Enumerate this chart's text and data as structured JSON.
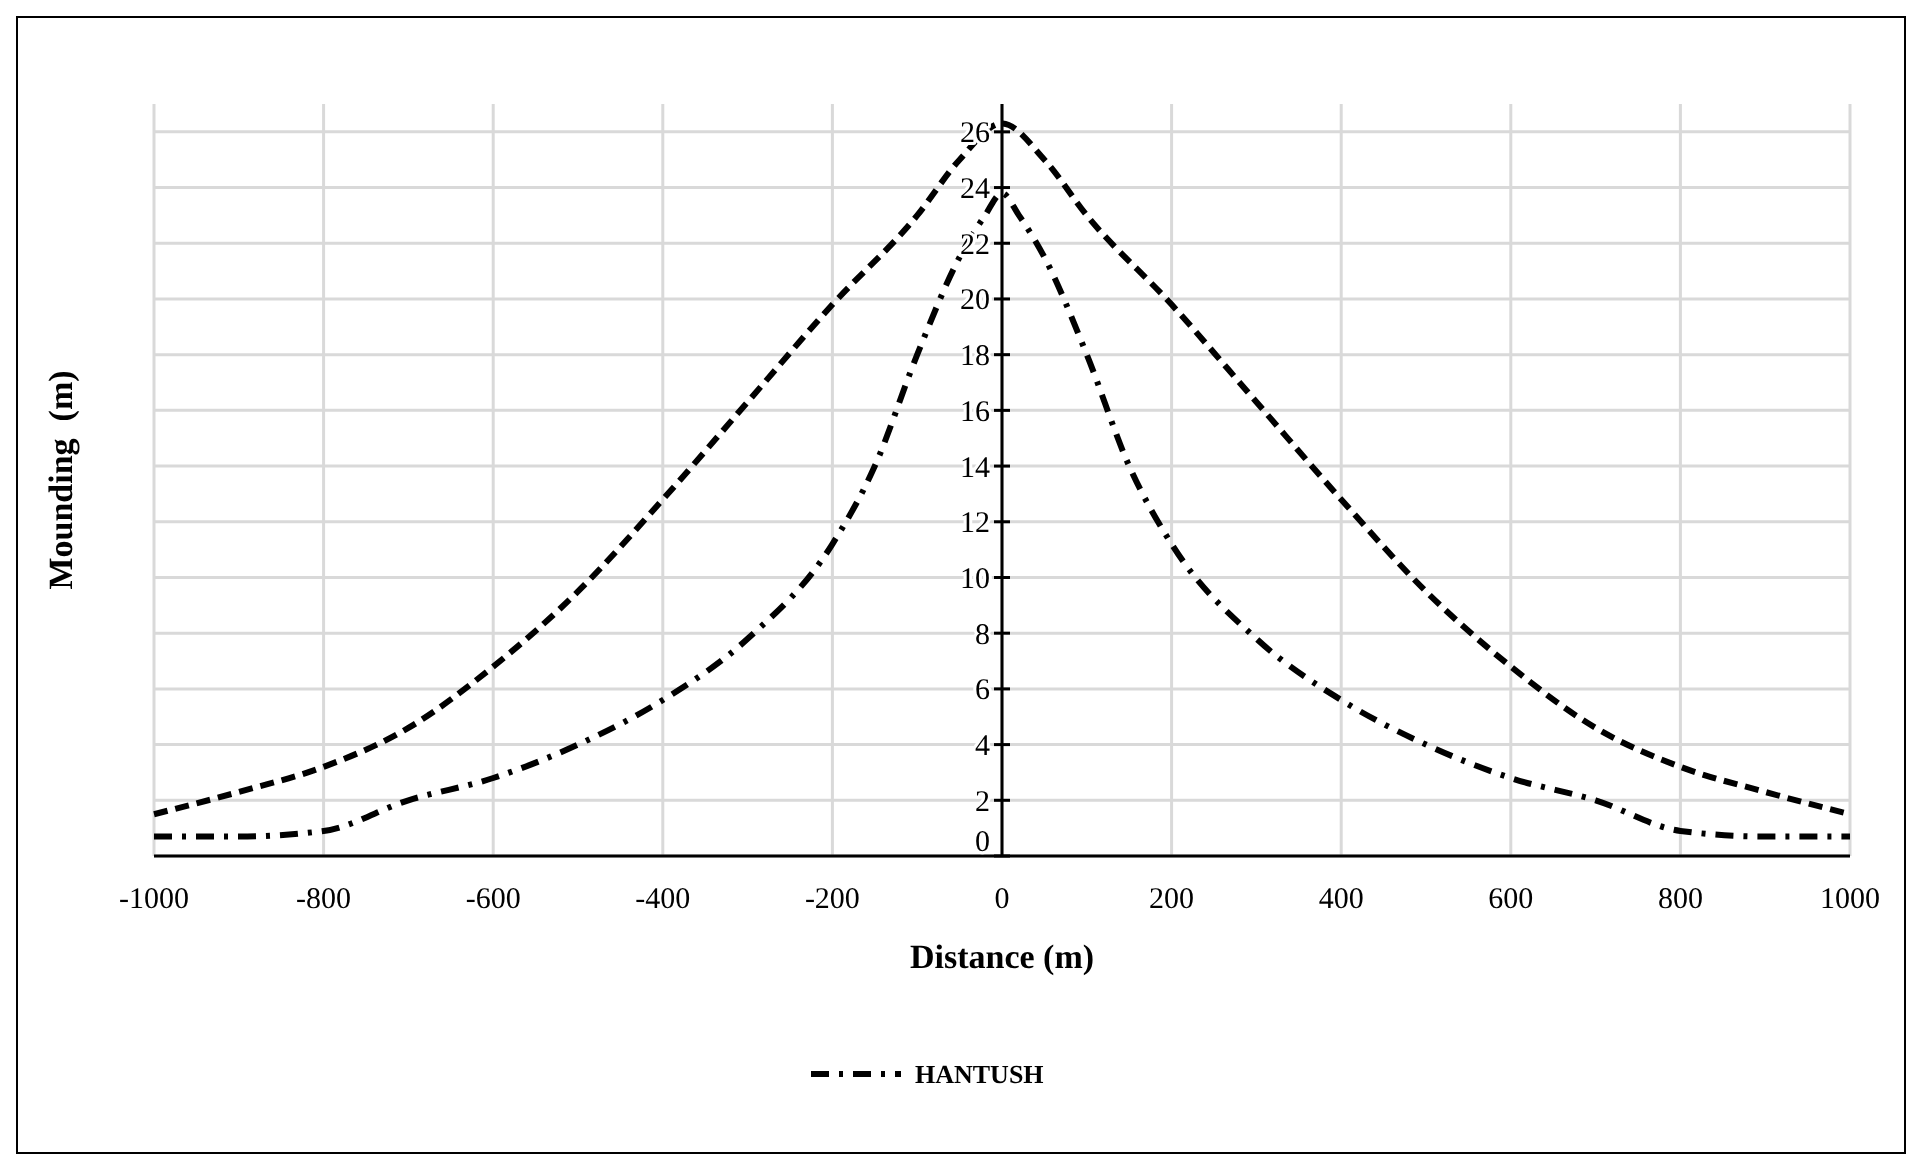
{
  "chart_data": {
    "type": "line",
    "xlabel": "Distance (m)",
    "ylabel": "Mounding  (m)",
    "xlim": [
      -1000,
      1000
    ],
    "ylim": [
      0,
      27
    ],
    "xticks": [
      -1000,
      -800,
      -600,
      -400,
      -200,
      0,
      200,
      400,
      600,
      800,
      1000
    ],
    "yticks": [
      0,
      2,
      4,
      6,
      8,
      10,
      12,
      14,
      16,
      18,
      20,
      22,
      24,
      26
    ],
    "grid": true,
    "legend": "bottom",
    "marker": "none",
    "series": [
      {
        "name": "HANTUSH",
        "color": "#000000",
        "line_style": "dashdot",
        "x": [
          -1000,
          -900,
          -800,
          -700,
          -600,
          -500,
          -400,
          -300,
          -200,
          -150,
          -100,
          -50,
          -20,
          0,
          20,
          50,
          100,
          150,
          200,
          300,
          400,
          500,
          600,
          700,
          800,
          900,
          1000
        ],
        "values": [
          0.7,
          0.7,
          0.9,
          2,
          2.8,
          4,
          5.6,
          7.8,
          11.2,
          14,
          18,
          21.5,
          23,
          23.8,
          23,
          21.5,
          18,
          14,
          11.2,
          7.8,
          5.6,
          4,
          2.8,
          2,
          0.9,
          0.7,
          0.7
        ]
      },
      {
        "color": "#000000",
        "line_style": "dashed",
        "x": [
          -1000,
          -900,
          -800,
          -700,
          -600,
          -500,
          -400,
          -300,
          -200,
          -100,
          -50,
          0,
          50,
          100,
          200,
          300,
          400,
          500,
          600,
          700,
          800,
          900,
          1000
        ],
        "values": [
          1.5,
          2.3,
          3.2,
          4.6,
          6.8,
          9.5,
          12.8,
          16.3,
          19.8,
          23,
          25,
          26.3,
          25,
          23,
          19.8,
          16.3,
          12.8,
          9.5,
          6.8,
          4.6,
          3.2,
          2.3,
          1.5
        ]
      }
    ]
  }
}
